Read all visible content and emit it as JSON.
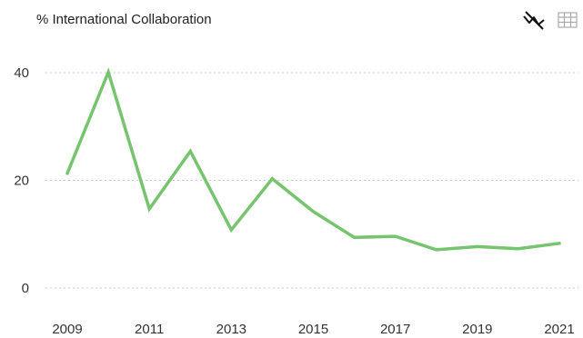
{
  "header": {
    "title": "% International Collaboration"
  },
  "toolbar": {
    "line_view_icon": "line-chart-icon",
    "table_view_icon": "table-grid-icon"
  },
  "colors": {
    "series": "#76c46d",
    "grid": "#c8c8c8",
    "text": "#333333"
  },
  "chart_data": {
    "type": "line",
    "title": "% International Collaboration",
    "xlabel": "",
    "ylabel": "",
    "x": [
      2009,
      2010,
      2011,
      2012,
      2013,
      2014,
      2015,
      2016,
      2017,
      2018,
      2019,
      2020,
      2021
    ],
    "series": [
      {
        "values": [
          21.3,
          40.1,
          14.7,
          25.4,
          10.8,
          20.3,
          14.2,
          9.4,
          9.6,
          7.1,
          7.7,
          7.3,
          8.3
        ]
      }
    ],
    "xticks": [
      "2009",
      "2011",
      "2013",
      "2015",
      "2017",
      "2019",
      "2021"
    ],
    "yticks": [
      "0",
      "20",
      "40"
    ],
    "xlim": [
      2009,
      2021
    ],
    "ylim": [
      0,
      40
    ],
    "grid": true,
    "legend": "none"
  }
}
